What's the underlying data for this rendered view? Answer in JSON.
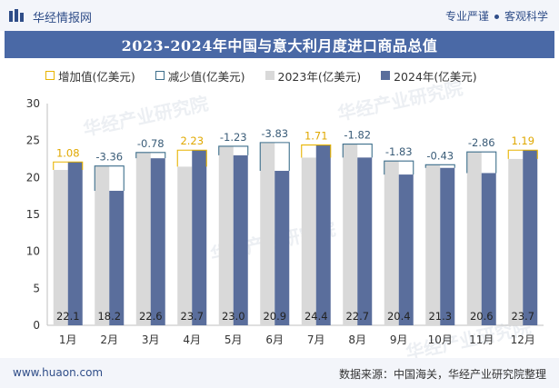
{
  "header": {
    "brand": "华经情报网",
    "slogan_left": "专业严谨",
    "slogan_right": "客观科学"
  },
  "chart_title": "2023-2024年中国与意大利月度进口商品总值",
  "legend": {
    "increase": "增加值(亿美元)",
    "decrease": "减少值(亿美元)",
    "y2023": "2023年(亿美元)",
    "y2024": "2024年(亿美元)"
  },
  "watermark": "华经产业研究院",
  "footer": {
    "site": "www.huaon.com",
    "source": "数据来源：中国海关，华经产业研究院整理"
  },
  "colors": {
    "bar2023": "#d9d9d9",
    "bar2024": "#5a6e9c",
    "increase": "#e8b400",
    "decrease": "#3e6f8c",
    "title_bg": "#4a69a6"
  },
  "chart_data": {
    "type": "bar",
    "categories": [
      "1月",
      "2月",
      "3月",
      "4月",
      "5月",
      "6月",
      "7月",
      "8月",
      "9月",
      "10月",
      "11月",
      "12月"
    ],
    "series": [
      {
        "name": "2023年(亿美元)",
        "values": [
          21.02,
          21.56,
          23.38,
          21.47,
          24.23,
          24.73,
          22.69,
          24.52,
          22.23,
          21.73,
          23.46,
          22.51
        ]
      },
      {
        "name": "2024年(亿美元)",
        "values": [
          22.1,
          18.2,
          22.6,
          23.7,
          23.0,
          20.9,
          24.4,
          22.7,
          20.4,
          21.3,
          20.6,
          23.7
        ]
      }
    ],
    "changes": [
      "1.08",
      "-3.36",
      "-0.78",
      "2.23",
      "-1.23",
      "-3.83",
      "1.71",
      "-1.82",
      "-1.83",
      "-0.43",
      "-2.86",
      "1.19"
    ],
    "y_ticks": [
      "0",
      "5",
      "10",
      "15",
      "20",
      "25",
      "30"
    ],
    "ylim": [
      0,
      30
    ]
  }
}
